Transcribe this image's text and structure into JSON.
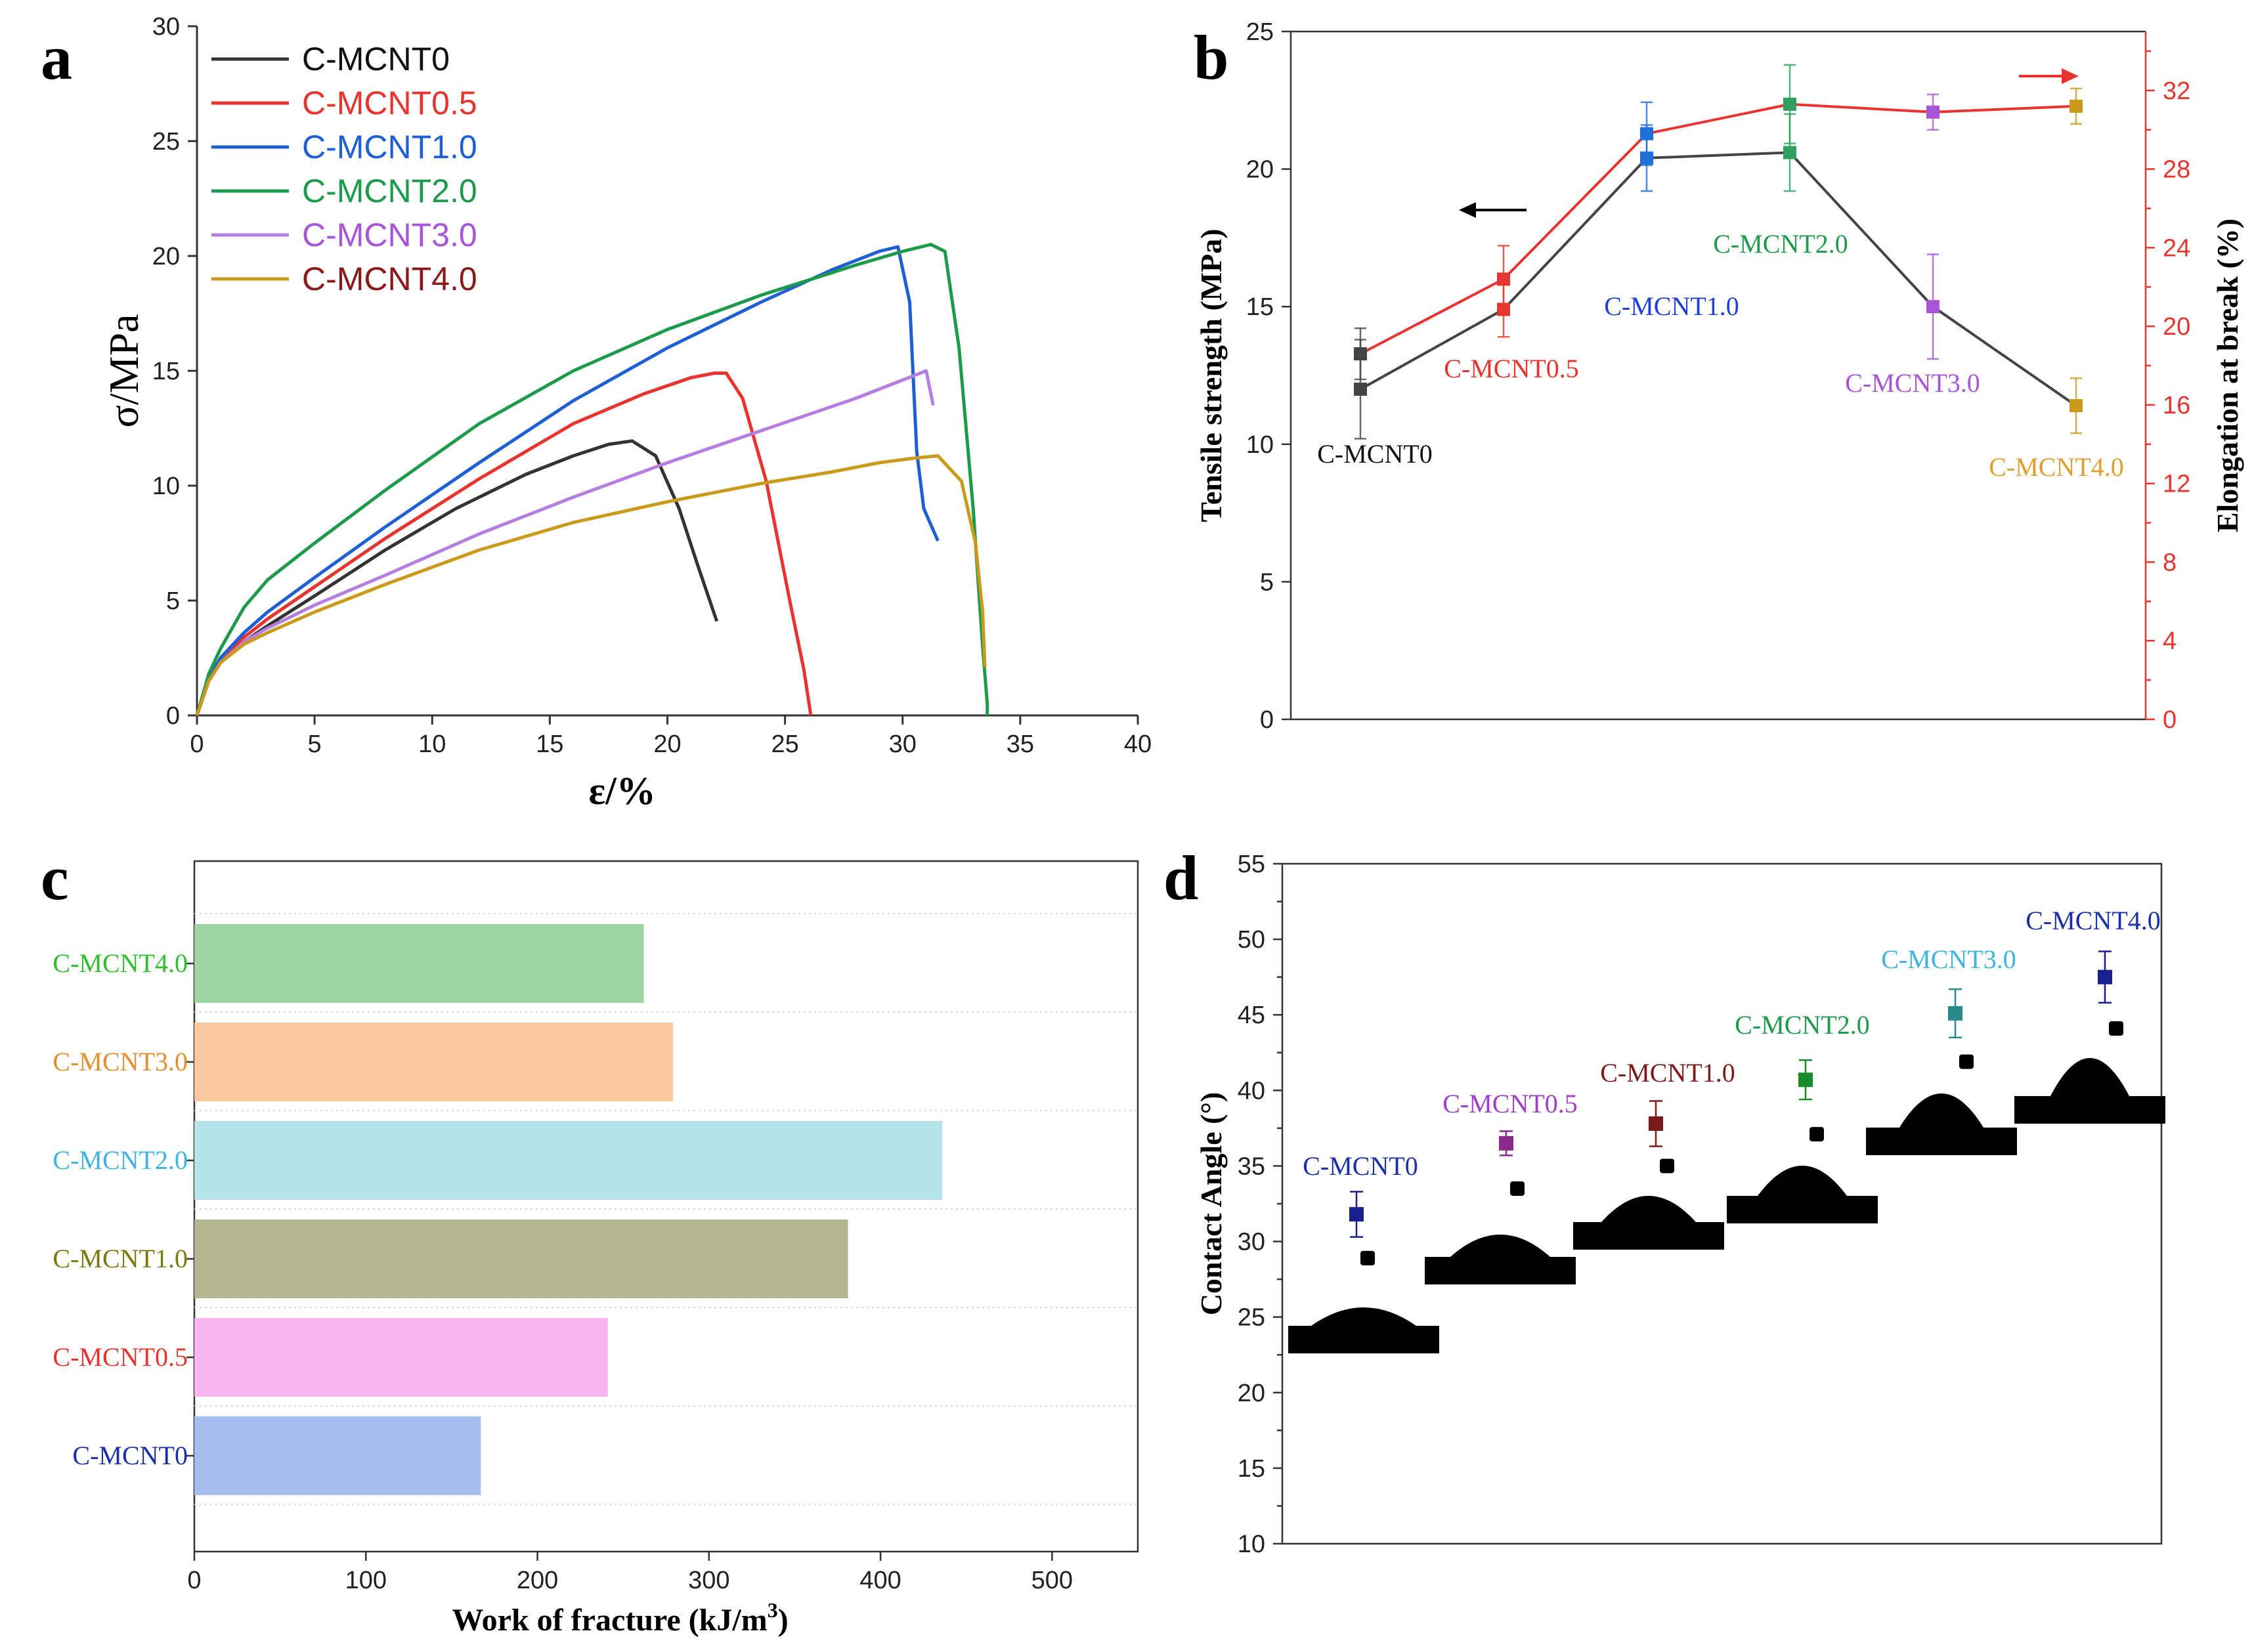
{
  "figure": {
    "panel_labels": [
      "a",
      "b",
      "c",
      "d"
    ]
  },
  "chart_data": [
    {
      "id": "a",
      "type": "line",
      "xlabel": "ε/%",
      "ylabel": "σ/MPa",
      "xlim": [
        0,
        40
      ],
      "ylim": [
        0,
        30
      ],
      "xticks": [
        0,
        5,
        10,
        15,
        20,
        25,
        30,
        35,
        40
      ],
      "yticks": [
        0,
        5,
        10,
        15,
        20,
        25,
        30
      ],
      "legend_position": "top-left",
      "series": [
        {
          "name": "C-MCNT0",
          "color": "#333333",
          "label_color": "#111111",
          "x": [
            0,
            0.5,
            1,
            2,
            3,
            5,
            8,
            11,
            14,
            16,
            17.5,
            18.5,
            19.5,
            20.5,
            21.3,
            22.1
          ],
          "y": [
            0,
            1.5,
            2.3,
            3.2,
            3.9,
            5.2,
            7.2,
            9.0,
            10.5,
            11.3,
            11.8,
            11.95,
            11.3,
            9.0,
            6.5,
            4.1
          ]
        },
        {
          "name": "C-MCNT0.5",
          "color": "#e8342e",
          "label_color": "#e8342e",
          "x": [
            0,
            0.5,
            1,
            2,
            3,
            5,
            8,
            12,
            16,
            19,
            21,
            22,
            22.5,
            23.2,
            24.2,
            25.2,
            25.8,
            26.1
          ],
          "y": [
            0,
            1.6,
            2.4,
            3.4,
            4.2,
            5.6,
            7.7,
            10.3,
            12.7,
            14.0,
            14.7,
            14.9,
            14.9,
            13.8,
            10.2,
            5.0,
            2.0,
            0
          ]
        },
        {
          "name": "C-MCNT1.0",
          "color": "#1f5fd6",
          "label_color": "#1f5fd6",
          "x": [
            0,
            0.5,
            1,
            2,
            3,
            5,
            8,
            12,
            16,
            20,
            24,
            27,
            29,
            29.8,
            30.3,
            30.6,
            30.9,
            31.5
          ],
          "y": [
            0,
            1.6,
            2.5,
            3.6,
            4.5,
            6.0,
            8.2,
            11.0,
            13.7,
            16.0,
            18.0,
            19.4,
            20.2,
            20.4,
            18.0,
            11.5,
            9.0,
            7.6
          ]
        },
        {
          "name": "C-MCNT2.0",
          "color": "#1e9a4b",
          "label_color": "#1e9a4b",
          "x": [
            0,
            0.5,
            1,
            2,
            3,
            5,
            8,
            12,
            16,
            20,
            24,
            28,
            30,
            31.2,
            31.8,
            32.4,
            33.0,
            33.4,
            33.6,
            33.6
          ],
          "y": [
            0,
            1.8,
            2.9,
            4.7,
            5.9,
            7.5,
            9.8,
            12.7,
            15.0,
            16.8,
            18.3,
            19.6,
            20.2,
            20.5,
            20.2,
            16.0,
            9.0,
            3.0,
            0.5,
            0
          ]
        },
        {
          "name": "C-MCNT3.0",
          "color": "#b57ee0",
          "label_color": "#a855d8",
          "x": [
            0,
            0.5,
            1,
            2,
            3,
            5,
            8,
            12,
            16,
            20,
            24,
            28,
            30,
            31.0,
            31.3
          ],
          "y": [
            0,
            1.5,
            2.3,
            3.2,
            3.8,
            4.8,
            6.1,
            7.9,
            9.5,
            11.0,
            12.4,
            13.8,
            14.6,
            15.0,
            13.5
          ]
        },
        {
          "name": "C-MCNT4.0",
          "color": "#c99a1c",
          "label_color": "#8a1a1a",
          "x": [
            0,
            0.5,
            1,
            2,
            3,
            5,
            8,
            12,
            16,
            20,
            24,
            27,
            29,
            30.5,
            31.5,
            32.5,
            33.1,
            33.4,
            33.5
          ],
          "y": [
            0,
            1.5,
            2.3,
            3.1,
            3.6,
            4.5,
            5.7,
            7.2,
            8.4,
            9.3,
            10.1,
            10.6,
            11.0,
            11.2,
            11.3,
            10.2,
            7.5,
            4.5,
            2.1
          ]
        }
      ]
    },
    {
      "id": "b",
      "type": "line",
      "xlabel": "",
      "ylabel": "Tensile strength (MPa)",
      "y2label": "Elongation at break (%)",
      "ylim": [
        0,
        25
      ],
      "y2lim": [
        0,
        35
      ],
      "yticks": [
        0,
        5,
        10,
        15,
        20,
        25
      ],
      "y2ticks": [
        0,
        4,
        8,
        12,
        16,
        20,
        24,
        28,
        32
      ],
      "categories": [
        "C-MCNT0",
        "C-MCNT0.5",
        "C-MCNT1.0",
        "C-MCNT2.0",
        "C-MCNT3.0",
        "C-MCNT4.0"
      ],
      "category_label_colors": [
        "#111111",
        "#e8342e",
        "#1f3fd6",
        "#1e9a4b",
        "#a855d8",
        "#e0a030"
      ],
      "point_colors": [
        "#444444",
        "#e8342e",
        "#1f6fd6",
        "#2fa060",
        "#a855d8",
        "#c99a1c"
      ],
      "series": [
        {
          "name": "Tensile strength",
          "axis": "left",
          "color": "#444444",
          "values": [
            12.0,
            14.9,
            20.4,
            20.6,
            15.0,
            11.4
          ],
          "errors": [
            1.8,
            1.0,
            1.2,
            1.4,
            1.9,
            1.0
          ]
        },
        {
          "name": "Elongation at break",
          "axis": "right",
          "color": "#e8342e",
          "values": [
            18.6,
            22.4,
            29.8,
            31.3,
            30.9,
            31.2
          ],
          "errors": [
            1.3,
            1.7,
            1.6,
            2.0,
            0.9,
            0.9
          ]
        }
      ],
      "arrow_left_color": "#000000",
      "arrow_right_color": "#e8342e"
    },
    {
      "id": "c",
      "type": "bar",
      "orientation": "horizontal",
      "xlabel": "Work of fracture (kJ/m",
      "xlabel_sup": "3",
      "xlabel_end": ")",
      "xlim": [
        0,
        550
      ],
      "xticks": [
        0,
        100,
        200,
        300,
        400,
        500
      ],
      "categories": [
        "C-MCNT4.0",
        "C-MCNT3.0",
        "C-MCNT2.0",
        "C-MCNT1.0",
        "C-MCNT0.5",
        "C-MCNT0"
      ],
      "values": [
        262,
        279,
        436,
        381,
        241,
        167
      ],
      "bar_colors": [
        "#9fd3a4",
        "#fac89c",
        "#b4e3e9",
        "#b3b68f",
        "#f9b4ef",
        "#a4bfef"
      ],
      "label_colors": [
        "#2fbf2f",
        "#e09030",
        "#3fb4e0",
        "#7a7a10",
        "#e8342e",
        "#1a2fa8"
      ]
    },
    {
      "id": "d",
      "type": "scatter",
      "xlabel": "",
      "ylabel": "Contact Angle (°)",
      "ylim": [
        10,
        55
      ],
      "yticks": [
        10,
        15,
        20,
        25,
        30,
        35,
        40,
        45,
        50,
        55
      ],
      "categories": [
        "C-MCNT0",
        "C-MCNT0.5",
        "C-MCNT1.0",
        "C-MCNT2.0",
        "C-MCNT3.0",
        "C-MCNT4.0"
      ],
      "values": [
        31.8,
        36.5,
        37.8,
        40.7,
        45.1,
        47.5
      ],
      "errors": [
        1.5,
        0.8,
        1.5,
        1.3,
        1.6,
        1.7
      ],
      "second_points": [
        28.9,
        33.5,
        35.0,
        37.1,
        41.9,
        44.1
      ],
      "point_colors": [
        "#1a2090",
        "#8a2a8a",
        "#7a1a1a",
        "#1a8a2a",
        "#2a8a8a",
        "#1a2090"
      ],
      "label_colors": [
        "#1a2fa8",
        "#a040c8",
        "#7a1a1a",
        "#1e9a4b",
        "#3fb4e0",
        "#1a2fa8"
      ]
    }
  ]
}
